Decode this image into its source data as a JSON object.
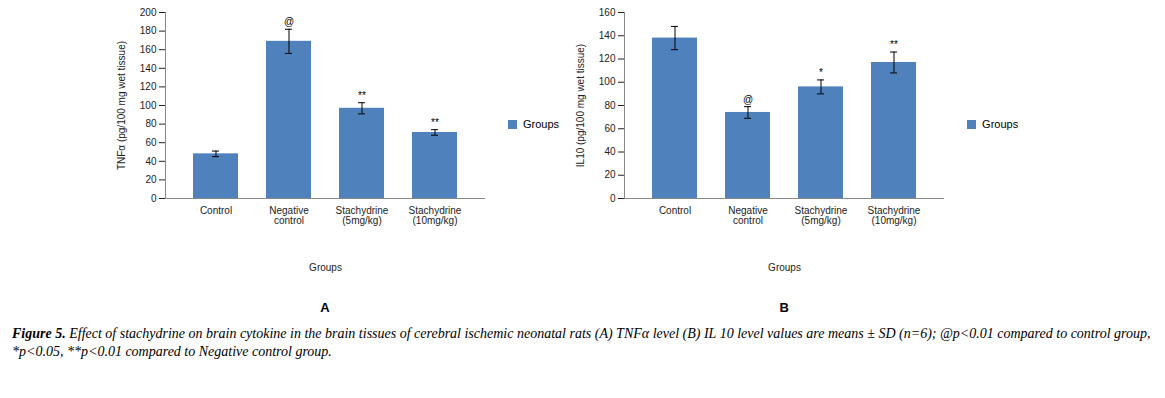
{
  "caption": "Figure 5. Effect of stachydrine on brain cytokine in the brain tissues of cerebral ischemic neonatal rats (A) TNFα level (B) IL 10 level values are means ± SD (n=6); @p<0.01 compared to control group, *p<0.05, **p<0.01 compared to Negative control group.",
  "chart_data": [
    {
      "type": "bar",
      "title": "A",
      "x_label": "Groups",
      "y_label": "TNFα (pg/100 mg wet tissue)",
      "categories": [
        "Control",
        "Negative control",
        "Stachydrine (5mg/kg)",
        "Stachydrine (10mg/kg)"
      ],
      "series": [
        {
          "name": "Groups",
          "color": "#4f81bd",
          "values": [
            48,
            169,
            97,
            71
          ],
          "errors": [
            3,
            13,
            6,
            3
          ]
        }
      ],
      "annotations": [
        null,
        "@",
        "**",
        "**"
      ],
      "ylim": [
        0,
        200
      ],
      "yticks": [
        0,
        20,
        40,
        60,
        80,
        100,
        120,
        140,
        160,
        180,
        200
      ],
      "legend": "right",
      "grid": false
    },
    {
      "type": "bar",
      "title": "B",
      "x_label": "Groups",
      "y_label": "IL10 (pg/100 mg wet tissue)",
      "categories": [
        "Control",
        "Negative control",
        "Stachydrine (5mg/kg)",
        "Stachydrine (10mg/kg)"
      ],
      "series": [
        {
          "name": "Groups",
          "color": "#4f81bd",
          "values": [
            138,
            74,
            96,
            117
          ],
          "errors": [
            10,
            5,
            6,
            9
          ]
        }
      ],
      "annotations": [
        null,
        "@",
        "*",
        "**"
      ],
      "ylim": [
        0,
        160
      ],
      "yticks": [
        0,
        20,
        40,
        60,
        80,
        100,
        120,
        140,
        160
      ],
      "legend": "right",
      "grid": false
    }
  ]
}
